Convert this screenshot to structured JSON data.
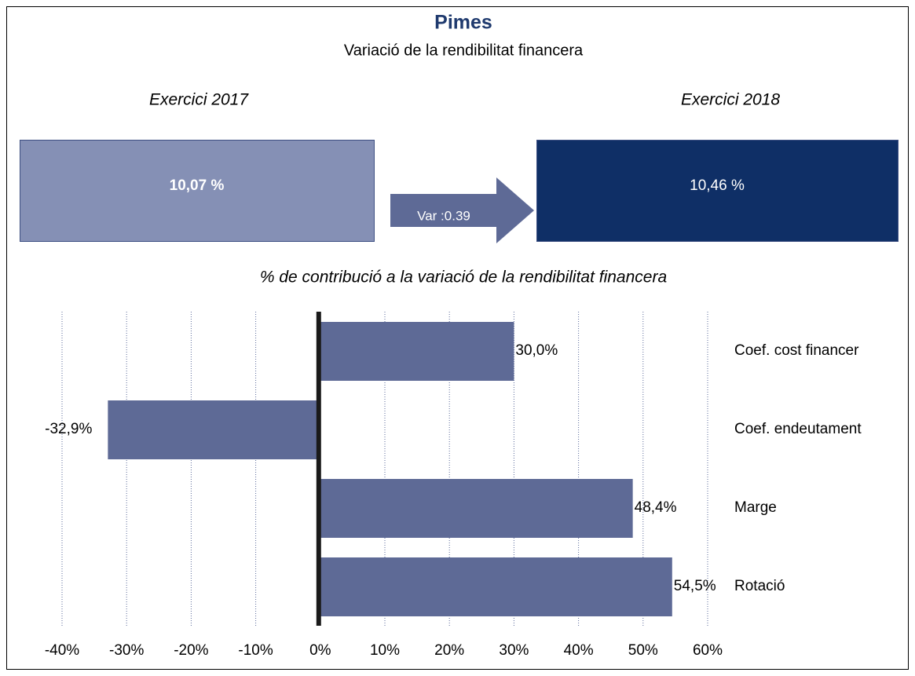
{
  "chart_data": {
    "type": "bar",
    "orientation": "horizontal",
    "title": "Pimes",
    "subtitle": "Variació de la rendibilitat financera",
    "kpis": [
      {
        "label": "Exercici 2017",
        "value": 10.07,
        "value_label": "10,07 %",
        "color": "#8590b5"
      },
      {
        "label": "Exercici 2018",
        "value": 10.46,
        "value_label": "10,46 %",
        "color": "#0f2f66"
      }
    ],
    "variation": {
      "value": 0.39,
      "label": "Var :0.39"
    },
    "chart_title": "% de contribució a la variació de la rendibilitat financera",
    "categories": [
      "Coef. cost financer",
      "Coef. endeutament",
      "Marge",
      "Rotació"
    ],
    "values": [
      30.0,
      -32.9,
      48.4,
      54.5
    ],
    "value_labels": [
      "30,0%",
      "-32,9%",
      "48,4%",
      "54,5%"
    ],
    "color": "#5e6a96",
    "xlim": [
      -40,
      60
    ],
    "xticks": [
      {
        "value": -40,
        "label": "-40%"
      },
      {
        "value": -30,
        "label": "-30%"
      },
      {
        "value": -20,
        "label": "-20%"
      },
      {
        "value": -10,
        "label": "-10%"
      },
      {
        "value": 0,
        "label": "0%"
      },
      {
        "value": 10,
        "label": "10%"
      },
      {
        "value": 20,
        "label": "20%"
      },
      {
        "value": 30,
        "label": "30%"
      },
      {
        "value": 40,
        "label": "40%"
      },
      {
        "value": 50,
        "label": "50%"
      },
      {
        "value": 60,
        "label": "60%"
      }
    ],
    "grid": true
  }
}
